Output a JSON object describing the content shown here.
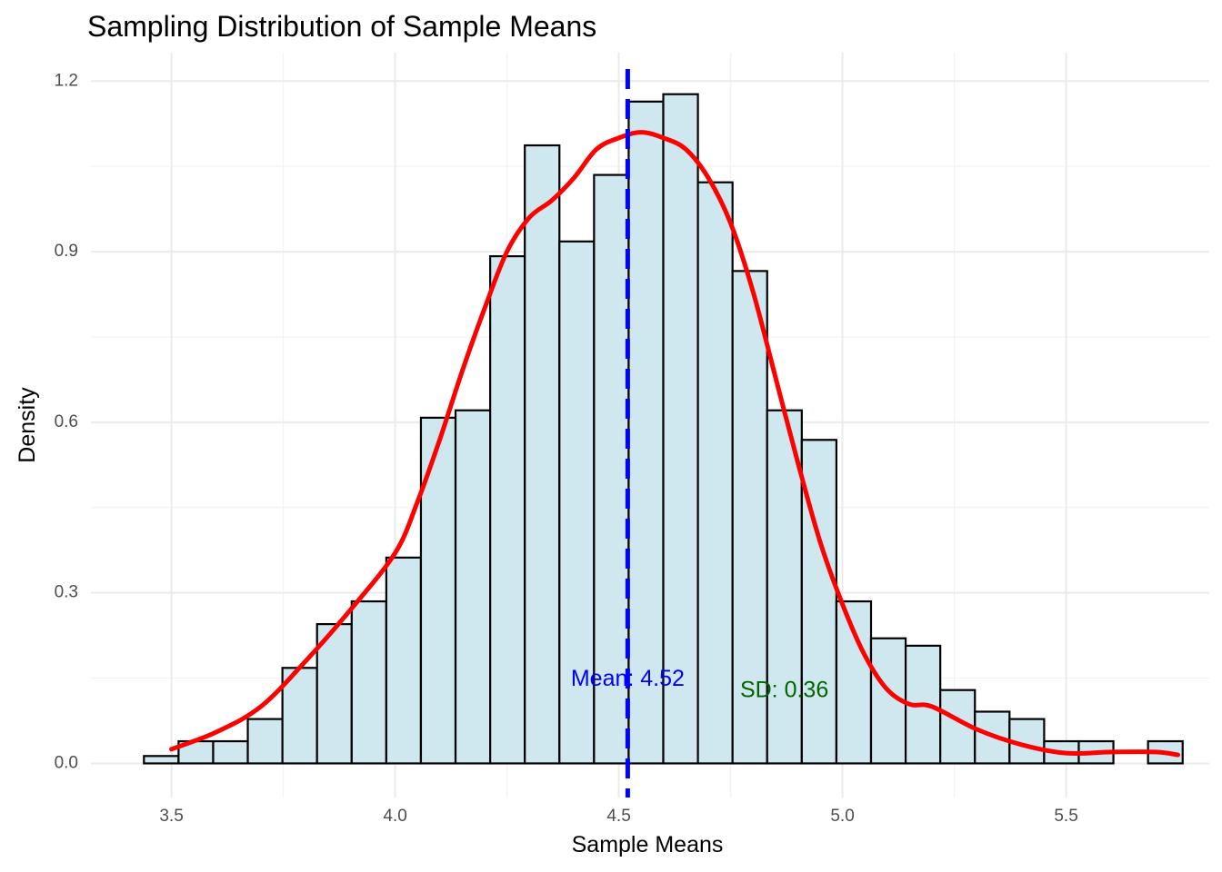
{
  "chart_data": {
    "type": "bar",
    "title": "Sampling Distribution of Sample Means",
    "xlabel": "Sample Means",
    "ylabel": "Density",
    "xlim": [
      3.32,
      5.82
    ],
    "ylim": [
      -0.06,
      1.25
    ],
    "x_ticks": [
      3.5,
      4.0,
      4.5,
      5.0,
      5.5
    ],
    "x_tick_labels": [
      "3.5",
      "4.0",
      "4.5",
      "5.0",
      "5.5"
    ],
    "y_ticks": [
      0.0,
      0.3,
      0.6,
      0.9,
      1.2
    ],
    "y_tick_labels": [
      "0.0",
      "0.3",
      "0.6",
      "0.9",
      "1.2"
    ],
    "grid": true,
    "histogram": {
      "name": "Sample Means histogram",
      "fill": "#cfe7ee",
      "edge": "#000000",
      "bin_edges": [
        3.4385,
        3.5159,
        3.5933,
        3.6707,
        3.7481,
        3.8255,
        3.9029,
        3.9803,
        4.0577,
        4.1351,
        4.2125,
        4.2899,
        4.3673,
        4.4447,
        4.5221,
        4.5995,
        4.6769,
        4.7543,
        4.8317,
        4.9091,
        4.9865,
        5.0639,
        5.1413,
        5.2187,
        5.2961,
        5.3735,
        5.4509,
        5.5283,
        5.6057,
        5.6831,
        5.7605
      ],
      "density": [
        0.013,
        0.039,
        0.039,
        0.078,
        0.168,
        0.245,
        0.285,
        0.362,
        0.608,
        0.621,
        0.892,
        1.087,
        0.918,
        1.035,
        1.164,
        1.177,
        1.022,
        0.866,
        0.621,
        0.569,
        0.285,
        0.22,
        0.207,
        0.129,
        0.091,
        0.078,
        0.039,
        0.039,
        0.0,
        0.039
      ]
    },
    "density_curve": {
      "color": "#ff0000",
      "x": [
        3.5,
        3.6,
        3.7,
        3.8,
        3.9,
        4.0,
        4.05,
        4.1,
        4.15,
        4.2,
        4.25,
        4.3,
        4.35,
        4.4,
        4.45,
        4.5,
        4.55,
        4.6,
        4.65,
        4.7,
        4.75,
        4.8,
        4.85,
        4.9,
        4.95,
        5.0,
        5.05,
        5.1,
        5.15,
        5.2,
        5.3,
        5.4,
        5.5,
        5.6,
        5.7,
        5.75
      ],
      "y": [
        0.025,
        0.055,
        0.1,
        0.18,
        0.27,
        0.37,
        0.46,
        0.57,
        0.69,
        0.8,
        0.9,
        0.96,
        0.99,
        1.03,
        1.08,
        1.1,
        1.11,
        1.1,
        1.08,
        1.03,
        0.95,
        0.83,
        0.68,
        0.53,
        0.39,
        0.28,
        0.19,
        0.13,
        0.104,
        0.1,
        0.06,
        0.033,
        0.018,
        0.02,
        0.02,
        0.015
      ]
    },
    "mean_line": {
      "x": 4.52,
      "color": "#0000ff",
      "style": "dashed"
    },
    "annotations": [
      {
        "text": "Mean: 4.52",
        "x": 4.52,
        "y": 0.147,
        "color": "#0000ff"
      },
      {
        "text": "SD: 0.36",
        "x": 4.87,
        "y": 0.127,
        "color": "#006400"
      }
    ]
  }
}
